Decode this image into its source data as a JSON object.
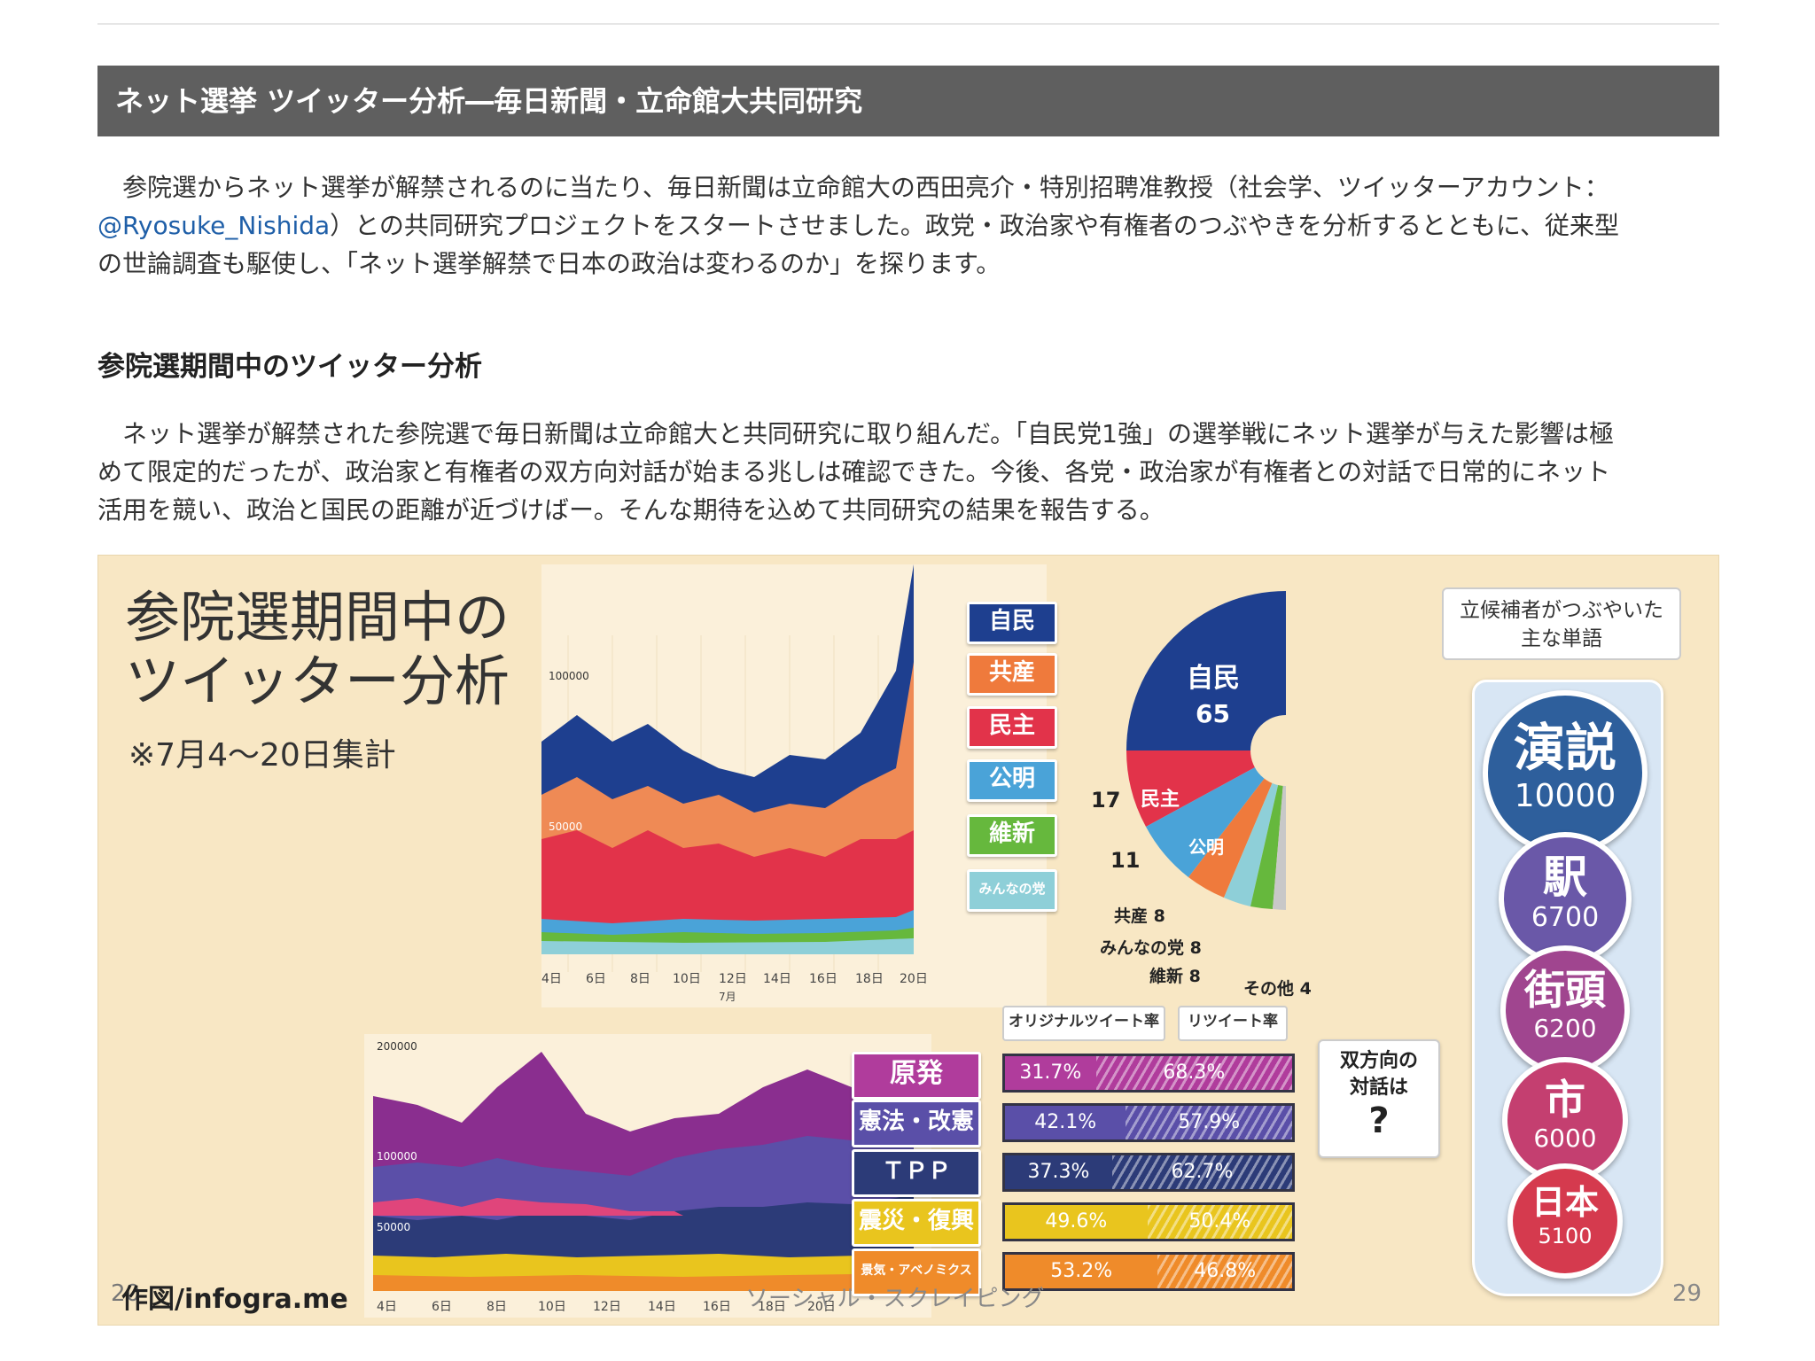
{
  "banner_title": "ネット選挙 ツイッター分析―毎日新聞・立命館大共同研究",
  "intro": {
    "line1": "参院選からネット選挙が解禁されるのに当たり、毎日新聞は立命館大の西田亮介・特別招聘准教授（社会学、ツイッターアカウント：",
    "handle": "@Ryosuke_Nishida",
    "line2": "）との共同研究プロジェクトをスタートさせました。政党・政治家や有権者のつぶやきを分析するとともに、従来型",
    "line3": "の世論調査も駆使し、「ネット選挙解禁で日本の政治は変わるのか」を探ります。"
  },
  "section_heading": "参院選期間中のツイッター分析",
  "body": {
    "line1": "ネット選挙が解禁された参院選で毎日新聞は立命館大と共同研究に取り組んだ。「自民党1強」の選挙戦にネット選挙が与えた影響は極",
    "line2": "めて限定的だったが、政治家と有権者の双方向対話が始まる兆しは確認できた。今後、各党・政治家が有権者との対話で日常的にネット",
    "line3": "活用を競い、政治と国民の距離が近づけばー。そんな期待を込めて共同研究の結果を報告する。"
  },
  "infographic": {
    "title_line1": "参院選期間中の",
    "title_line2": "ツイッター分析",
    "subtitle": "※7月4～20日集計",
    "credit": "作図/infogra.me",
    "footer_center": "ソーシャル・スクレイピング",
    "footer_left_partial": "20",
    "page_number": "29",
    "party_labels": [
      "自民",
      "共産",
      "民主",
      "公明",
      "維新",
      "みんなの党"
    ],
    "party_colors": [
      "#1e3f8f",
      "#ef7a3c",
      "#e2334a",
      "#4aa3d8",
      "#66b83d",
      "#8ecfd8"
    ],
    "top_chart": {
      "ytick_100000": "100000",
      "ytick_50000": "50000",
      "xticks": [
        "4日",
        "6日",
        "8日",
        "10日",
        "12日",
        "14日",
        "16日",
        "18日",
        "20日"
      ],
      "month": "7月"
    },
    "seats": {
      "jimin_name": "自民",
      "jimin": "65",
      "minshu_name": "民主",
      "minshu": "17",
      "komei_name": "公明",
      "komei": "11",
      "kyosan": "共産 8",
      "minna": "みんなの党 8",
      "ishin": "維新 8",
      "other": "その他 4"
    },
    "words_label_line1": "立候補者がつぶやいた",
    "words_label_line2": "主な単語",
    "words": [
      {
        "word": "演説",
        "count": "10000",
        "color": "#2e5f9c"
      },
      {
        "word": "駅",
        "count": "6700",
        "color": "#6a58a8"
      },
      {
        "word": "街頭",
        "count": "6200",
        "color": "#a0458f"
      },
      {
        "word": "市",
        "count": "6000",
        "color": "#c43f70"
      },
      {
        "word": "日本",
        "count": "5100",
        "color": "#d53a4e"
      }
    ],
    "bottom_chart": {
      "ytick_200000": "200000",
      "ytick_100000": "100000",
      "ytick_50000": "50000",
      "xticks": [
        "4日",
        "6日",
        "8日",
        "10日",
        "12日",
        "14日",
        "16日",
        "18日",
        "20日"
      ]
    },
    "tag_original": "オリジナルツイート率",
    "tag_retweet": "リツイート率",
    "dialog_line1": "双方向の",
    "dialog_line2": "対話は",
    "dialog_q": "?",
    "topics": [
      {
        "label": "原発",
        "orig": "31.7%",
        "rt": "68.3%",
        "orig_value": 31.7,
        "color": "#b03c9c"
      },
      {
        "label": "憲法・改憲",
        "orig": "42.1%",
        "rt": "57.9%",
        "orig_value": 42.1,
        "color": "#5a4fa8"
      },
      {
        "label": "ＴＰＰ",
        "orig": "37.3%",
        "rt": "62.7%",
        "orig_value": 37.3,
        "color": "#2c3b78"
      },
      {
        "label": "震災・復興",
        "orig": "49.6%",
        "rt": "50.4%",
        "orig_value": 49.6,
        "color": "#e9c51e"
      },
      {
        "label": "景気・アベノミクス",
        "orig": "53.2%",
        "rt": "46.8%",
        "orig_value": 53.2,
        "color": "#ef8b2a"
      }
    ]
  }
}
